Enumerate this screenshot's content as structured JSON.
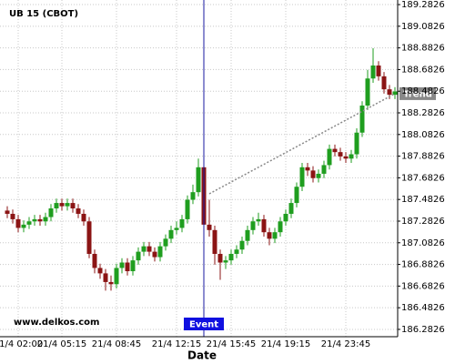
{
  "chart_data": {
    "type": "candlestick",
    "title": "UB 15 (CBOT)",
    "watermark": "www.delkos.com",
    "x_label": "Date",
    "categories": [
      null,
      null,
      "21/4 02:00",
      null,
      null,
      null,
      null,
      null,
      null,
      null,
      "21/4 05:15",
      null,
      null,
      null,
      null,
      null,
      null,
      null,
      null,
      null,
      "21/4 08:45",
      null,
      null,
      null,
      null,
      null,
      null,
      null,
      null,
      null,
      null,
      "21/4 12:15",
      null,
      null,
      null,
      null,
      null,
      null,
      null,
      null,
      null,
      "21/4 15:45",
      null,
      null,
      null,
      null,
      null,
      null,
      null,
      null,
      null,
      "21/4 19:15",
      null,
      null,
      null,
      null,
      null,
      null,
      null,
      null,
      null,
      null,
      "21/4 23:45",
      null,
      null,
      null,
      null,
      null,
      null,
      null,
      null,
      null
    ],
    "open": [
      187.38,
      187.35,
      187.3,
      187.22,
      187.25,
      187.28,
      187.3,
      187.28,
      187.32,
      187.4,
      187.45,
      187.42,
      187.45,
      187.4,
      187.35,
      187.28,
      186.98,
      186.85,
      186.8,
      186.72,
      186.7,
      186.85,
      186.9,
      186.82,
      186.92,
      187.0,
      187.05,
      187.0,
      186.95,
      187.05,
      187.12,
      187.2,
      187.22,
      187.3,
      187.48,
      187.55,
      187.78,
      187.25,
      187.2,
      186.98,
      186.9,
      186.92,
      186.98,
      187.02,
      187.1,
      187.2,
      187.28,
      187.3,
      187.18,
      187.12,
      187.18,
      187.28,
      187.35,
      187.45,
      187.6,
      187.78,
      187.75,
      187.68,
      187.72,
      187.8,
      187.95,
      187.92,
      187.88,
      187.86,
      187.9,
      188.1,
      188.35,
      188.6,
      188.72,
      188.62,
      188.5,
      188.45
    ],
    "high": [
      187.42,
      187.39,
      187.34,
      187.29,
      187.32,
      187.34,
      187.34,
      187.36,
      187.44,
      187.49,
      187.49,
      187.49,
      187.49,
      187.44,
      187.39,
      187.32,
      187.02,
      186.89,
      186.84,
      186.78,
      186.89,
      186.94,
      186.94,
      186.96,
      187.04,
      187.09,
      187.09,
      187.04,
      187.09,
      187.16,
      187.24,
      187.28,
      187.34,
      187.52,
      187.62,
      187.86,
      187.82,
      187.48,
      187.24,
      187.02,
      186.96,
      187.02,
      187.06,
      187.14,
      187.24,
      187.32,
      187.36,
      187.34,
      187.22,
      187.22,
      187.32,
      187.39,
      187.49,
      187.64,
      187.82,
      187.82,
      187.79,
      187.76,
      187.84,
      187.99,
      187.99,
      187.96,
      187.92,
      187.94,
      188.14,
      188.39,
      188.68,
      188.88,
      188.76,
      188.66,
      188.54,
      188.52
    ],
    "low": [
      187.31,
      187.26,
      187.18,
      187.18,
      187.21,
      187.24,
      187.24,
      187.24,
      187.28,
      187.36,
      187.38,
      187.38,
      187.36,
      187.31,
      187.24,
      186.94,
      186.8,
      186.75,
      186.64,
      186.64,
      186.66,
      186.8,
      186.78,
      186.78,
      186.88,
      186.96,
      186.96,
      186.91,
      186.91,
      187.01,
      187.08,
      187.16,
      187.18,
      187.26,
      187.44,
      187.51,
      187.2,
      187.14,
      186.88,
      186.74,
      186.84,
      186.88,
      186.94,
      186.98,
      187.06,
      187.16,
      187.24,
      187.14,
      187.06,
      187.08,
      187.14,
      187.24,
      187.31,
      187.41,
      187.56,
      187.7,
      187.64,
      187.64,
      187.68,
      187.76,
      187.88,
      187.84,
      187.82,
      187.82,
      187.86,
      188.06,
      188.31,
      188.56,
      188.58,
      188.46,
      188.41,
      188.41
    ],
    "close": [
      187.35,
      187.3,
      187.22,
      187.25,
      187.28,
      187.3,
      187.28,
      187.32,
      187.4,
      187.45,
      187.42,
      187.45,
      187.4,
      187.35,
      187.28,
      186.98,
      186.85,
      186.8,
      186.72,
      186.7,
      186.85,
      186.9,
      186.82,
      186.92,
      187.0,
      187.05,
      187.0,
      186.95,
      187.05,
      187.12,
      187.2,
      187.22,
      187.3,
      187.48,
      187.55,
      187.78,
      187.25,
      187.2,
      186.98,
      186.9,
      186.92,
      186.98,
      187.02,
      187.1,
      187.2,
      187.28,
      187.3,
      187.18,
      187.12,
      187.18,
      187.28,
      187.35,
      187.45,
      187.6,
      187.78,
      187.75,
      187.68,
      187.72,
      187.8,
      187.95,
      187.92,
      187.88,
      187.86,
      187.9,
      188.1,
      188.35,
      188.6,
      188.72,
      188.62,
      188.5,
      188.45,
      188.48
    ],
    "up_color": "#1f9e1f",
    "down_color": "#8b1414",
    "ylim": [
      186.215,
      189.325
    ],
    "yticks": [
      186.2826,
      186.4826,
      186.6826,
      186.8826,
      187.0826,
      187.2826,
      187.4826,
      187.6826,
      187.8826,
      188.0826,
      188.2826,
      188.4826,
      188.6826,
      188.8826,
      189.0826,
      189.2826
    ],
    "grid": true,
    "event": {
      "label": "Event",
      "x": 36,
      "color": "#1a1aa0"
    },
    "trend": {
      "label": "Trend",
      "x": [
        37,
        71
      ],
      "values": [
        187.535,
        188.46
      ],
      "color": "#888888"
    }
  }
}
